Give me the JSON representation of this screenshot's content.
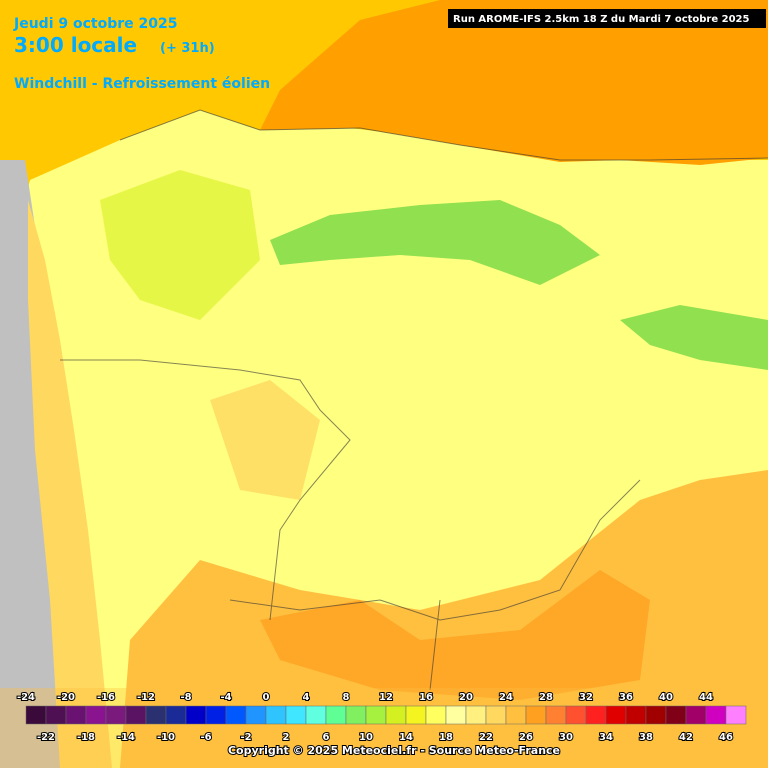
{
  "header": {
    "date": "Jeudi 9 octobre 2025",
    "time": "3:00 locale",
    "lead": "(+ 31h)",
    "parameter": "Windchill - Refroissement éolien",
    "run": "Run AROME-IFS 2.5km 18 Z du Mardi 7 octobre 2025"
  },
  "legend": {
    "steps": [
      {
        "value": -24,
        "color": "#3a0a3a"
      },
      {
        "value": -22,
        "color": "#4e1052"
      },
      {
        "value": -20,
        "color": "#6a1272"
      },
      {
        "value": -18,
        "color": "#8a1490"
      },
      {
        "value": -16,
        "color": "#7a1a7c"
      },
      {
        "value": -14,
        "color": "#5a1262"
      },
      {
        "value": -12,
        "color": "#2a3070"
      },
      {
        "value": -10,
        "color": "#1a2a96"
      },
      {
        "value": -8,
        "color": "#0000c8"
      },
      {
        "value": -6,
        "color": "#0020e6"
      },
      {
        "value": -4,
        "color": "#0058ff"
      },
      {
        "value": -2,
        "color": "#2094ff"
      },
      {
        "value": 0,
        "color": "#30c4ff"
      },
      {
        "value": 2,
        "color": "#40e6ff"
      },
      {
        "value": 4,
        "color": "#60ffe0"
      },
      {
        "value": 6,
        "color": "#60ff96"
      },
      {
        "value": 8,
        "color": "#80f060"
      },
      {
        "value": 10,
        "color": "#a6f040"
      },
      {
        "value": 12,
        "color": "#d4f020"
      },
      {
        "value": 14,
        "color": "#f4f420"
      },
      {
        "value": 16,
        "color": "#ffff60"
      },
      {
        "value": 18,
        "color": "#ffffa0"
      },
      {
        "value": 20,
        "color": "#fff080"
      },
      {
        "value": 22,
        "color": "#ffd860"
      },
      {
        "value": 24,
        "color": "#ffc040"
      },
      {
        "value": 26,
        "color": "#ffa020"
      },
      {
        "value": 28,
        "color": "#ff8030"
      },
      {
        "value": 30,
        "color": "#ff5030"
      },
      {
        "value": 32,
        "color": "#ff2020"
      },
      {
        "value": 34,
        "color": "#e00000"
      },
      {
        "value": 36,
        "color": "#c00000"
      },
      {
        "value": 38,
        "color": "#a00000"
      },
      {
        "value": 40,
        "color": "#800018"
      },
      {
        "value": 42,
        "color": "#a00068"
      },
      {
        "value": 44,
        "color": "#d000c0"
      },
      {
        "value": 46,
        "color": "#ff80ff"
      }
    ]
  },
  "footer": {
    "copyright": "Copyright © 2025 Meteociel.fr - Source Meteo-France"
  }
}
